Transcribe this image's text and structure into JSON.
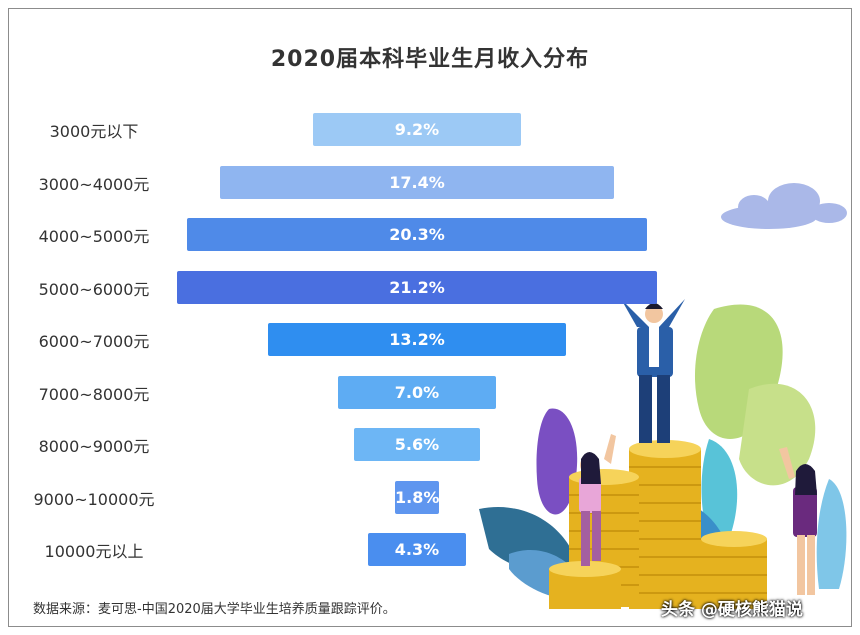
{
  "chart_data": {
    "type": "bar",
    "title": "2020届本科毕业生月收入分布",
    "categories": [
      "3000元以下",
      "3000~4000元",
      "4000~5000元",
      "5000~6000元",
      "6000~7000元",
      "7000~8000元",
      "8000~9000元",
      "9000~10000元",
      "10000元以上"
    ],
    "values": [
      9.2,
      17.4,
      20.3,
      21.2,
      13.2,
      7.0,
      5.6,
      1.8,
      4.3
    ],
    "value_labels": [
      "9.2%",
      "17.4%",
      "20.3%",
      "21.2%",
      "13.2%",
      "7.0%",
      "5.6%",
      "1.8%",
      "4.3%"
    ],
    "bar_colors": [
      "#9cc9f5",
      "#8fb5f0",
      "#4f8ae8",
      "#4a6fe0",
      "#2f8ef0",
      "#5eacf3",
      "#6db6f5",
      "#5f96ef",
      "#4a8eef"
    ],
    "orientation": "horizontal",
    "layout_style": "centered funnel",
    "xlabel": "",
    "ylabel": ""
  },
  "source_note": "数据来源：麦可思-中国2020届大学毕业生培养质量跟踪评价。",
  "watermark": "头条 @硬核熊猫说",
  "decoration": "people celebrating on stacks of gold coins, plant leaves and cloud"
}
